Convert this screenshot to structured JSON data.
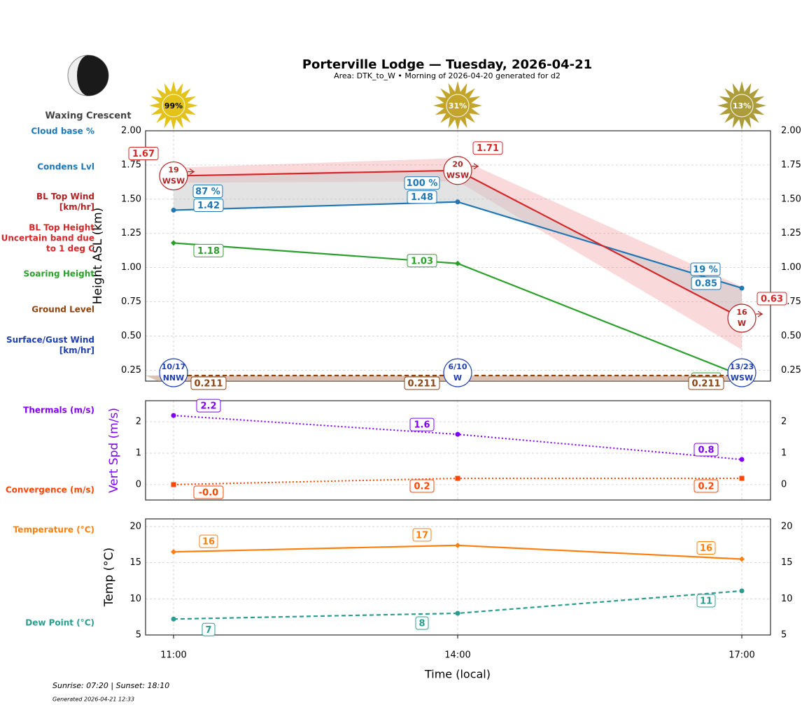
{
  "header": {
    "title": "Porterville Lodge — Tuesday, 2026-04-21",
    "subtitle": "Area: DTK_to_W • Morning of 2026-04-20 generated for d2"
  },
  "moon": {
    "phase": "Waxing Crescent"
  },
  "sun": {
    "values": [
      99,
      31,
      13
    ],
    "value_labels": [
      "99%",
      "31%",
      "13%"
    ],
    "colors": [
      "#e3c21a",
      "#c2a52a",
      "#ad9d3a"
    ]
  },
  "chart_data": [
    {
      "type": "line",
      "ylabel": "Height ASL (km)",
      "ylim": [
        0.17,
        2.0
      ],
      "yticks": [
        0.25,
        {
          "value": 0.5,
          "label": "0.50"
        },
        0.75,
        {
          "value": 1,
          "label": "1.00"
        },
        1.25,
        {
          "value": 1.5,
          "label": "1.50"
        },
        1.75,
        {
          "value": 2,
          "label": "2.00"
        }
      ],
      "grid": true,
      "cloud_base": {
        "name": "Cloud base %",
        "color": "#1f77b4",
        "values": [
          87,
          100,
          19
        ],
        "value_labels": [
          "87 %",
          "100 %",
          "19 %"
        ]
      },
      "bl_top_wind": {
        "name": "BL Top Wind [km/hr]",
        "color": "#b22222",
        "speeds": [
          19,
          20,
          16
        ],
        "directions": [
          "WSW",
          "WSW",
          "W"
        ]
      },
      "surface_wind": {
        "name": "Surface/Gust Wind [km/hr]",
        "color": "#1f3fb0",
        "speeds": [
          10,
          6,
          13
        ],
        "gusts": [
          17,
          10,
          23
        ],
        "value_labels": [
          "10/17",
          "6/10",
          "13/23"
        ],
        "directions": [
          "NNW",
          "W",
          "WSW"
        ]
      },
      "series": [
        {
          "name": "Condens Lvl",
          "color": "#1f77b4",
          "values": [
            1.42,
            1.48,
            0.85
          ],
          "marker": "o",
          "linestyle": "solid"
        },
        {
          "name": "BL Top Height Uncertain band due to 1 deg C",
          "color": "#d62728",
          "values": [
            1.67,
            1.71,
            0.63
          ],
          "band_upper": [
            1.73,
            1.8,
            0.86
          ],
          "band_lower": [
            1.62,
            1.63,
            0.4
          ],
          "band_color": "#f08088",
          "marker": "none",
          "linestyle": "solid"
        },
        {
          "name": "Soaring Height",
          "color": "#2ca02c",
          "values": [
            1.18,
            1.03,
            0.21
          ],
          "marker": "D",
          "linestyle": "solid"
        },
        {
          "name": "Ground Level",
          "color": "#8b4513",
          "values": [
            0.211,
            0.211,
            0.211
          ],
          "fill": "#c49a80",
          "marker": "none",
          "linestyle": "dashed"
        }
      ]
    },
    {
      "type": "line",
      "ylabel": "Vert Spd (m/s)",
      "ylabel_color": "#8000ff",
      "ylim": [
        -0.49,
        2.67
      ],
      "yticks": [
        0,
        1,
        2
      ],
      "grid": true,
      "series": [
        {
          "name": "Thermals (m/s)",
          "color": "#8000ff",
          "values": [
            2.2,
            1.6,
            0.8
          ],
          "marker": "o",
          "linestyle": "dotted"
        },
        {
          "name": "Convergence (m/s)",
          "color": "#ff4500",
          "values": [
            0,
            0.2,
            0.2
          ],
          "value_labels": [
            "-0.0",
            "0.2",
            "0.2"
          ],
          "marker": "s",
          "linestyle": "dotted"
        }
      ]
    },
    {
      "type": "line",
      "ylabel": "Temp (°C)",
      "xlabel": "Time (local)",
      "categories": [
        "11:00",
        "14:00",
        "17:00"
      ],
      "ylim": [
        5,
        21.06
      ],
      "yticks": [
        5,
        10,
        15,
        20
      ],
      "grid": true,
      "series": [
        {
          "name": "Temperature (°C)",
          "color": "#ff7f0e",
          "values": [
            16.5,
            17.4,
            15.5
          ],
          "value_labels": [
            "16",
            "17",
            "16"
          ],
          "marker": "D",
          "linestyle": "solid"
        },
        {
          "name": "Dew Point (°C)",
          "color": "#2a9d8f",
          "values": [
            7.2,
            8.0,
            11.1
          ],
          "value_labels": [
            "7",
            "8",
            "11"
          ],
          "marker": "o",
          "linestyle": "dashed"
        }
      ]
    }
  ],
  "footer": {
    "sun_times": "Sunrise: 07:20 | Sunset: 18:10",
    "generated": "Generated 2026-04-21 12:33"
  }
}
